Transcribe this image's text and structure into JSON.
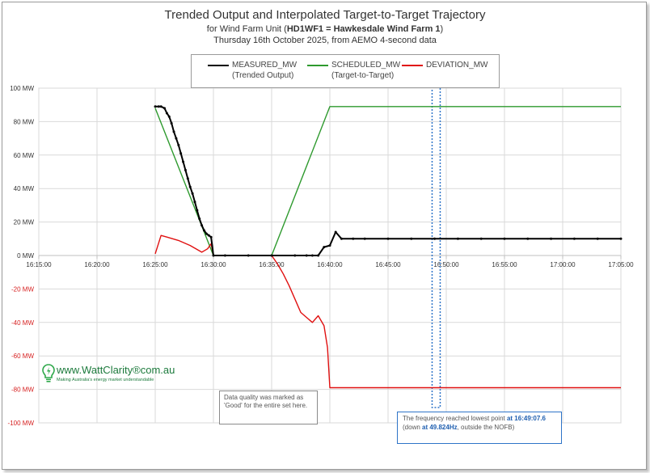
{
  "chart_data": {
    "type": "line",
    "title": "Trended Output and Interpolated Target-to-Target Trajectory",
    "subtitle_prefix": "for Wind Farm Unit (",
    "subtitle_bold": "HD1WF1 = Hawkesdale Wind Farm 1",
    "subtitle_suffix": ")",
    "subtitle2": "Thursday 16th October 2025, from AEMO 4-second data",
    "y_ticks": [
      "100 MW",
      "80 MW",
      "60 MW",
      "40 MW",
      "20 MW",
      "0 MW",
      "-20 MW",
      "-40 MW",
      "-60 MW",
      "-80 MW",
      "-100 MW"
    ],
    "x_ticks": [
      "16:15:00",
      "16:20:00",
      "16:25:00",
      "16:30:00",
      "16:35:00",
      "16:40:00",
      "16:45:00",
      "16:50:00",
      "16:55:00",
      "17:00:00",
      "17:05:00"
    ],
    "xlim_minutes": [
      0,
      50
    ],
    "ylim": [
      -100,
      100
    ],
    "grid": true,
    "legend_position": "top-center",
    "series": [
      {
        "name": "MEASURED_MW",
        "subname": "(Trended Output)",
        "color": "#000000",
        "marker": "dot",
        "x": [
          10.0,
          10.3,
          10.5,
          10.8,
          11.0,
          11.2,
          11.4,
          11.6,
          11.8,
          12.0,
          12.2,
          12.4,
          12.6,
          12.8,
          13.0,
          13.2,
          13.4,
          13.6,
          13.8,
          14.0,
          14.2,
          14.4,
          14.6,
          14.8,
          15.0,
          16.0,
          18.0,
          20.0,
          22.0,
          23.0,
          23.5,
          24.0,
          24.5,
          25.0,
          25.5,
          26.0,
          27.0,
          28.0,
          30.0,
          32.0,
          34.0,
          36.0,
          38.0,
          40.0,
          42.0,
          44.0,
          46.0,
          48.0,
          50.0
        ],
        "y": [
          89,
          89,
          89,
          88,
          85,
          83,
          79,
          74,
          70,
          66,
          61,
          56,
          51,
          46,
          41,
          37,
          32,
          27,
          22,
          18,
          15,
          13,
          12,
          11,
          0,
          0,
          0,
          0,
          0,
          0,
          0,
          0,
          5,
          6,
          14,
          10,
          10,
          10,
          10,
          10,
          10,
          10,
          10,
          10,
          10,
          10,
          10,
          10,
          10
        ]
      },
      {
        "name": "SCHEDULED_MW",
        "subname": "(Target-to-Target)",
        "color": "#2e9a2e",
        "x": [
          10.0,
          15.0,
          20.0,
          25.0,
          50.0
        ],
        "y": [
          88,
          0,
          0,
          89,
          89
        ]
      },
      {
        "name": "DEVIATION_MW",
        "subname": "",
        "color": "#e01010",
        "x": [
          10.0,
          10.5,
          11.0,
          12.0,
          13.0,
          14.0,
          14.5,
          14.8,
          15.0,
          16.0,
          18.0,
          20.0,
          20.5,
          21.0,
          21.5,
          22.0,
          22.5,
          23.0,
          23.5,
          24.0,
          24.5,
          24.8,
          25.0,
          26.0,
          28.0,
          30.0,
          32.0,
          34.0,
          36.0,
          38.0,
          40.0,
          42.0,
          44.0,
          46.0,
          48.0,
          50.0
        ],
        "y": [
          1,
          12,
          11,
          9,
          6,
          2,
          4,
          7,
          0,
          0,
          0,
          0,
          -5,
          -11,
          -18,
          -26,
          -34,
          -37,
          -40,
          -36,
          -42,
          -55,
          -79,
          -79,
          -79,
          -79,
          -79,
          -79,
          -79,
          -79,
          -79,
          -79,
          -79,
          -79,
          -79,
          -79
        ]
      }
    ],
    "highlight_x_minutes": 34.13
  },
  "annotations": {
    "data_quality": "Data quality was marked as 'Good' for the entire set here.",
    "freq_prefix": "The frequency reached lowest point ",
    "freq_time": "at 16:49:07.6",
    "freq_mid": " (down ",
    "freq_hz": "at 49.824Hz",
    "freq_suffix": ", outside the NOFB)"
  },
  "brand": {
    "name": "www.WattClarity®com.au",
    "tagline": "Making Australia's energy market understandable"
  }
}
